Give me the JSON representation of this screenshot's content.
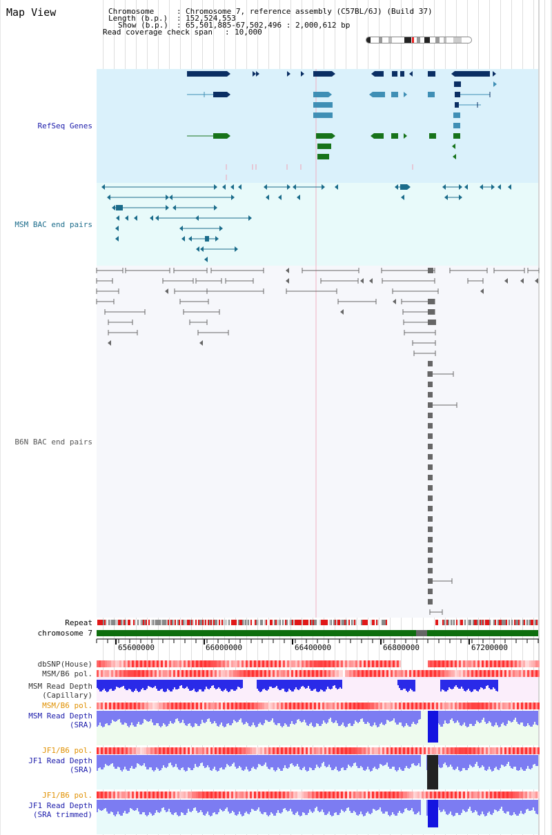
{
  "header": {
    "title": "Map View",
    "chromosome_key": "Chromosome",
    "chromosome_value": "Chromosome 7, reference assembly (C57BL/6J) (Build 37)",
    "length_key": "Length (b.p.)",
    "length_value": "152,524,553",
    "show_key": "Show (b.p.)",
    "show_value": "65,501,885-67,502,496 : 2,000,612 bp",
    "coverage_key": "Read coverage check span",
    "coverage_value": "10,000"
  },
  "tracks": {
    "refseq": "RefSeq Genes",
    "msm_bac": "MSM BAC end pairs",
    "b6n_bac": "B6N BAC end pairs",
    "repeat": "Repeat",
    "chromosome": "chromosome 7",
    "dbsnp": "dbSNP(House)",
    "msm_b6_pol_1": "MSM/B6 pol.",
    "msm_read_depth_cap_1": "MSM Read Depth",
    "msm_read_depth_cap_2": "(Capillary)",
    "msm_b6_pol_2": "MSM/B6 pol.",
    "msm_read_depth_sra_1": "MSM Read Depth",
    "msm_read_depth_sra_2": "(SRA)",
    "jf1_b6_pol_1": "JF1/B6 pol.",
    "jf1_read_depth_sra_1": "JF1 Read Depth",
    "jf1_read_depth_sra_2": "(SRA)",
    "jf1_b6_pol_2": "JF1/B6 pol.",
    "jf1_read_depth_trim_1": "JF1 Read Depth",
    "jf1_read_depth_trim_2": "(SRA trimmed)"
  },
  "axis": {
    "ticks": [
      "65600000",
      "66000000",
      "66400000",
      "66800000",
      "67200000"
    ]
  },
  "colors": {
    "refseq_bg": "#daf1fb",
    "msm_bg": "#e8fafa",
    "b6n_bg": "#f6f7fb",
    "gene_dark": "#0a2e63",
    "gene_mid": "#3f8fb5",
    "gene_green": "#17731a",
    "bac_teal": "#1a6b8a",
    "bac_gray": "#666666",
    "chrom_green": "#0e6e0e",
    "depth_blue": "#3a3aee",
    "pol_red": "#e33b3b",
    "label_blue": "#1a1aaa",
    "label_orange": "#e09000"
  }
}
